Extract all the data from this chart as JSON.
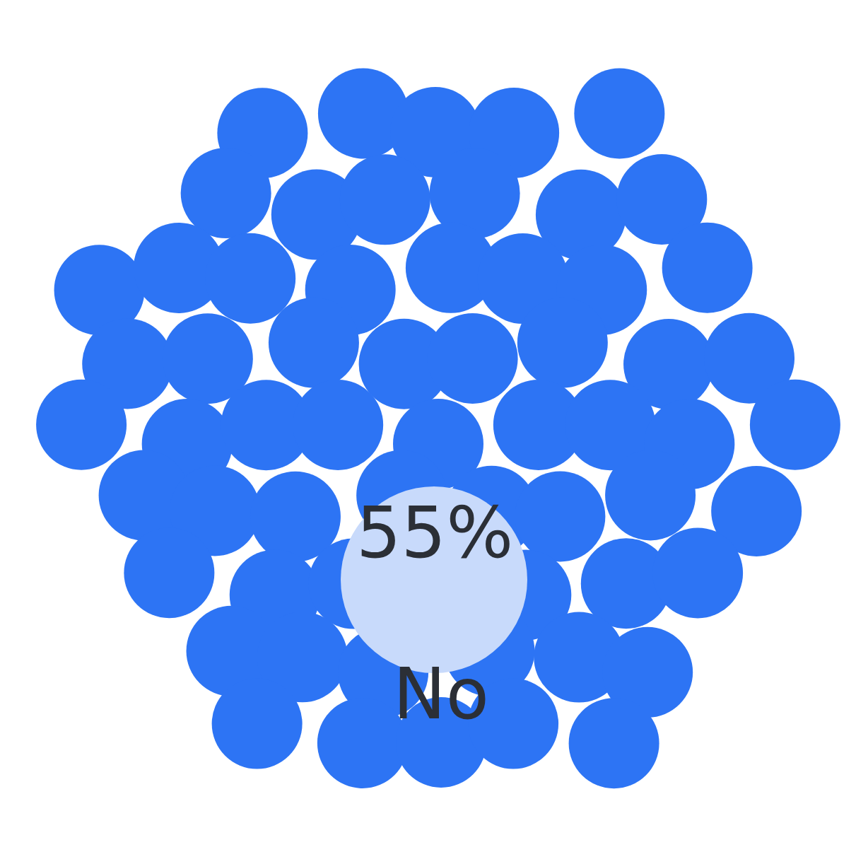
{
  "chart_data": {
    "type": "other",
    "categories": [
      "No"
    ],
    "values": [
      55
    ],
    "value_labels": [
      "55%"
    ]
  }
}
